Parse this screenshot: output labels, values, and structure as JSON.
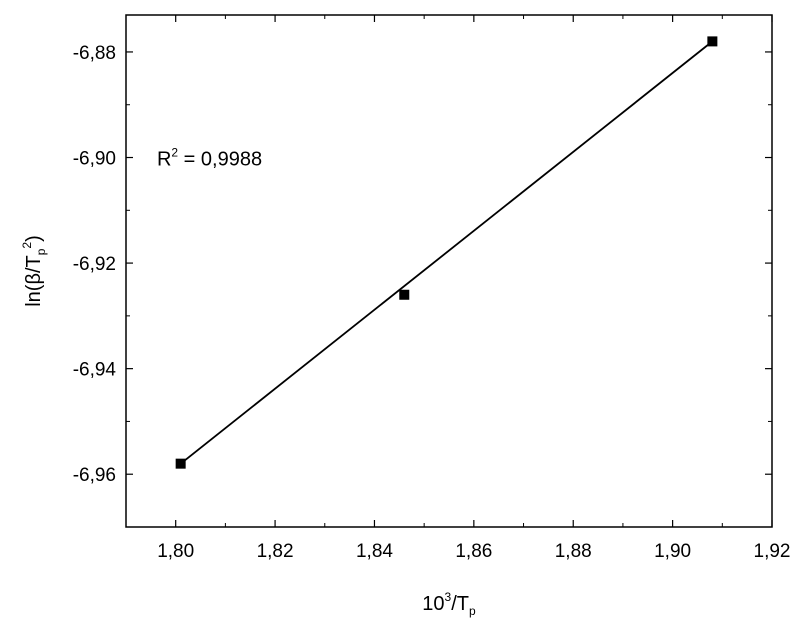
{
  "chart_data": {
    "type": "scatter",
    "title": "",
    "xlabel": {
      "base": "10",
      "sup": "3",
      "rest": "/T",
      "sub": "p"
    },
    "ylabel": {
      "prefix": "ln(β/T",
      "sub": "p",
      "sup": "2",
      "suffix": ")"
    },
    "xlim": [
      1.79,
      1.92
    ],
    "ylim": [
      -6.97,
      -6.873
    ],
    "xticks": [
      1.8,
      1.82,
      1.84,
      1.86,
      1.88,
      1.9,
      1.92
    ],
    "xtick_labels": [
      "1,80",
      "1,82",
      "1,84",
      "1,86",
      "1,88",
      "1,90",
      "1,92"
    ],
    "yticks": [
      -6.96,
      -6.94,
      -6.92,
      -6.9,
      -6.88
    ],
    "ytick_labels": [
      "-6,96",
      "-6,94",
      "-6,92",
      "-6,90",
      "-6,88"
    ],
    "grid": false,
    "series": [
      {
        "x": [
          1.801,
          1.846,
          1.908
        ],
        "y": [
          -6.958,
          -6.926,
          -6.878
        ],
        "marker": "square",
        "color": "#000000"
      }
    ],
    "fit_line": {
      "x": [
        1.801,
        1.908
      ],
      "y": [
        -6.958,
        -6.878
      ]
    },
    "annotation": {
      "prefix": "R",
      "sup": "2",
      "rest": " = 0,9988",
      "x": 1.791,
      "y": -6.9
    }
  }
}
